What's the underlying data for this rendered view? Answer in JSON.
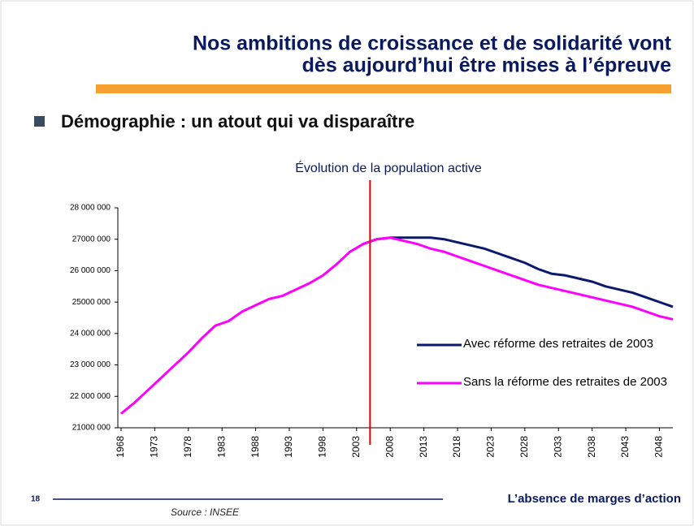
{
  "slide": {
    "title_line1": "Nos ambitions de croissance et de solidarité vont",
    "title_line2": "dès aujourd’hui être mises à l’épreuve",
    "bullet": "Démographie : un atout qui va disparaître",
    "page_number": "18",
    "footer": "L’absence de marges d’action",
    "source": "Source : INSEE"
  },
  "chart_data": {
    "type": "line",
    "title": "Évolution de la population active",
    "x": [
      1968,
      1970,
      1972,
      1974,
      1976,
      1978,
      1980,
      1982,
      1984,
      1986,
      1988,
      1990,
      1992,
      1994,
      1996,
      1998,
      2000,
      2002,
      2004,
      2006,
      2008,
      2010,
      2012,
      2014,
      2016,
      2018,
      2020,
      2022,
      2024,
      2026,
      2028,
      2030,
      2032,
      2034,
      2036,
      2038,
      2040,
      2042,
      2044,
      2046,
      2048,
      2050
    ],
    "series": [
      {
        "name": "Avec réforme des retraites de 2003",
        "color": "#0a1a6e",
        "values": [
          null,
          null,
          null,
          null,
          null,
          null,
          null,
          null,
          null,
          null,
          null,
          null,
          null,
          null,
          null,
          null,
          null,
          null,
          26850000,
          27000000,
          27050000,
          27050000,
          27050000,
          27050000,
          27000000,
          26900000,
          26800000,
          26700000,
          26550000,
          26400000,
          26250000,
          26050000,
          25900000,
          25850000,
          25750000,
          25650000,
          25500000,
          25400000,
          25300000,
          25150000,
          25000000,
          24850000
        ]
      },
      {
        "name": "Sans la réforme des retraites de 2003",
        "color": "#ff00ff",
        "values": [
          21450000,
          21800000,
          22200000,
          22600000,
          23000000,
          23400000,
          23850000,
          24250000,
          24400000,
          24700000,
          24900000,
          25100000,
          25200000,
          25400000,
          25600000,
          25850000,
          26200000,
          26600000,
          26850000,
          27000000,
          27050000,
          26950000,
          26850000,
          26700000,
          26600000,
          26450000,
          26300000,
          26150000,
          26000000,
          25850000,
          25700000,
          25550000,
          25450000,
          25350000,
          25250000,
          25150000,
          25050000,
          24950000,
          24850000,
          24700000,
          24550000,
          24450000
        ]
      }
    ],
    "xlim": [
      1968,
      2050
    ],
    "xticks": [
      1968,
      1973,
      1978,
      1983,
      1988,
      1993,
      1998,
      2003,
      2008,
      2013,
      2018,
      2023,
      2028,
      2033,
      2038,
      2043,
      2048
    ],
    "ylim": [
      21000000,
      28000000
    ],
    "yticks": [
      {
        "value": 21000000,
        "label": "21000 000"
      },
      {
        "value": 22000000,
        "label": "22 000 000"
      },
      {
        "value": 23000000,
        "label": "23 000 000"
      },
      {
        "value": 24000000,
        "label": "24 000 000"
      },
      {
        "value": 25000000,
        "label": "25000 000"
      },
      {
        "value": 26000000,
        "label": "26 000 000"
      },
      {
        "value": 27000000,
        "label": "27000 000"
      },
      {
        "value": 28000000,
        "label": "28 000 000"
      }
    ],
    "marker_x": 2005,
    "marker_color": "#e00000",
    "grid": false,
    "legend": "lower right"
  }
}
